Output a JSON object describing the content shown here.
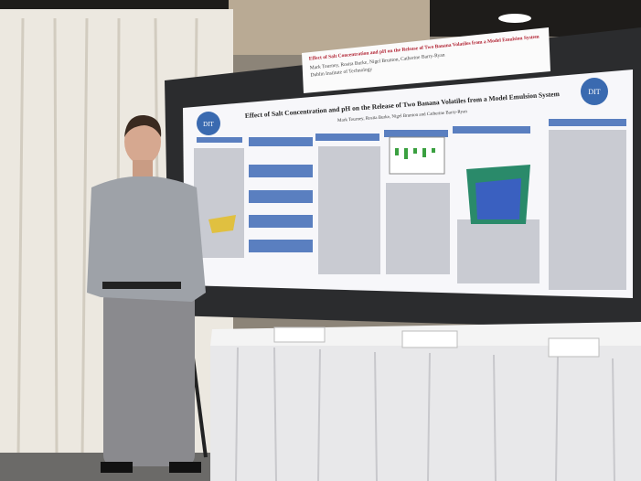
{
  "sign": {
    "title": "Effect of Salt Concentration and pH on the Release of Two Banana Volatiles from a Model Emulsion System",
    "authors": "Mark Tourney, Rosita Burke, Nigel Brunton, Catherine Barry-Ryan",
    "institution": "Dublin Institute of Technology"
  },
  "poster": {
    "title": "Effect of Salt Concentration and pH on the Release of Two Banana Volatiles from a Model Emulsion System",
    "authors": "Mark Tourney, Rosita Burke, Nigel Brunton and Catherine Barry-Ryan",
    "logo": "DIT"
  }
}
